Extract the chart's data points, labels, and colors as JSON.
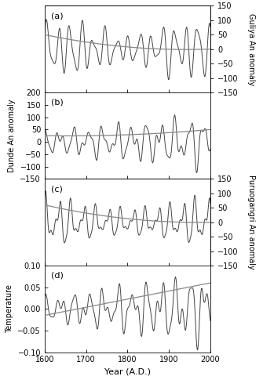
{
  "xlim": [
    1600,
    2000
  ],
  "xlabel": "Year (A.D.)",
  "xticks": [
    1600,
    1700,
    1800,
    1900,
    2000
  ],
  "panels": [
    {
      "label": "(a)",
      "has_left_yticks": false,
      "has_right_yticks": true,
      "ylabel_left": null,
      "ylabel_right": "Guliya An anomaly",
      "ylim_signal": [
        -150,
        150
      ],
      "yticks_right": [
        150,
        100,
        50,
        0,
        -50,
        -100,
        -150
      ]
    },
    {
      "label": "(b)",
      "has_left_yticks": true,
      "has_right_yticks": false,
      "ylabel_left": "Dunde An anomaly",
      "ylabel_right": null,
      "ylim_signal": [
        -150,
        200
      ],
      "yticks_left": [
        200,
        150,
        100,
        50,
        0,
        -50,
        -100,
        -150
      ]
    },
    {
      "label": "(c)",
      "has_left_yticks": false,
      "has_right_yticks": true,
      "ylabel_left": null,
      "ylabel_right": "Puruogangri An anomaly",
      "ylim_signal": [
        -150,
        150
      ],
      "yticks_right": [
        150,
        100,
        50,
        0,
        -50,
        -100,
        -150
      ]
    },
    {
      "label": "(d)",
      "has_left_yticks": true,
      "has_right_yticks": false,
      "ylabel_left": "Temperature",
      "ylabel_right": null,
      "ylim_signal": [
        -0.1,
        0.1
      ],
      "yticks_left": [
        0.1,
        0.05,
        0.0,
        -0.05,
        -0.1
      ]
    }
  ],
  "line_color": "#444444",
  "trend_color": "#888888",
  "bg_color": "#ffffff",
  "font_size": 7,
  "label_font_size": 8
}
